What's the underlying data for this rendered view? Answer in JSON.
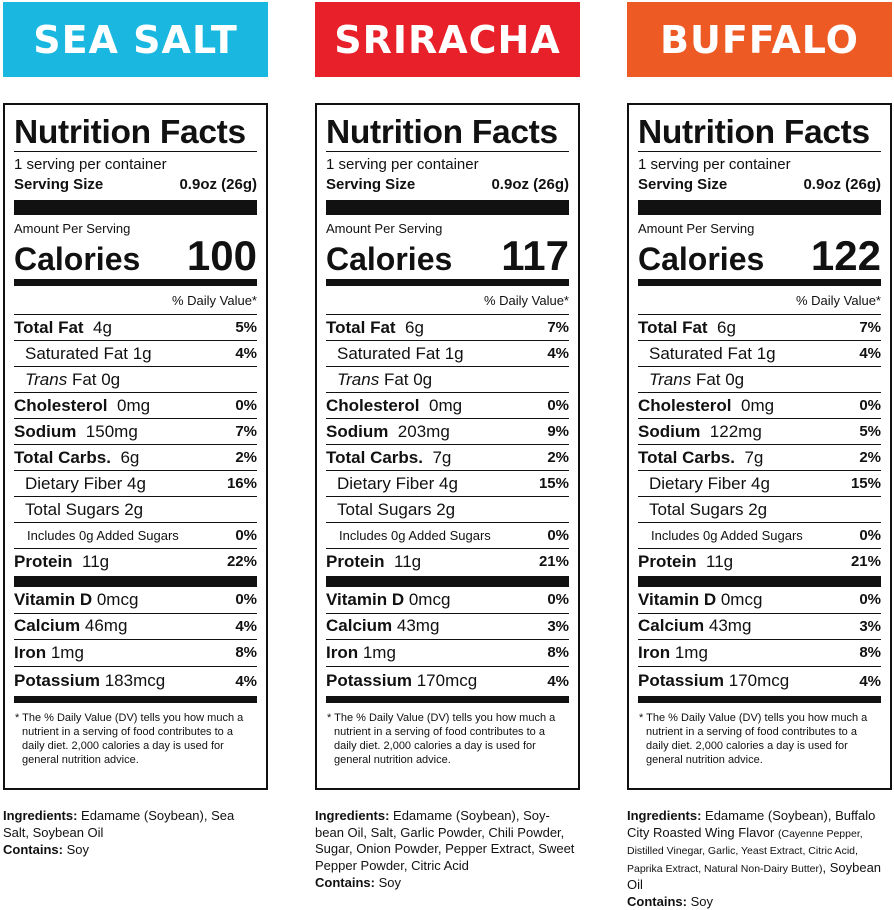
{
  "flavors": [
    {
      "name": "SEA SALT",
      "color": "#1ab8e0",
      "label": {
        "title": "Nutrition Facts",
        "servings": "1 serving per container",
        "serving_size_label": "Serving Size",
        "serving_size": "0.9oz (26g)",
        "amount_per_serving": "Amount Per Serving",
        "calories_label": "Calories",
        "calories": "100",
        "dv_header": "% Daily Value*",
        "rows": [
          {
            "name": "Total Fat",
            "amount": "4g",
            "dv": "5%"
          },
          {
            "name": "Saturated Fat 1g",
            "amount": "",
            "dv": "4%"
          },
          {
            "name": "Trans",
            "amount": "Fat  0g",
            "dv": ""
          },
          {
            "name": "Cholesterol",
            "amount": "0mg",
            "dv": "0%"
          },
          {
            "name": "Sodium",
            "amount": "150mg",
            "dv": "7%"
          },
          {
            "name": "Total Carbs.",
            "amount": "6g",
            "dv": "2%"
          },
          {
            "name": "Dietary Fiber 4g",
            "amount": "",
            "dv": "16%"
          },
          {
            "name": "Total Sugars 2g",
            "amount": "",
            "dv": ""
          },
          {
            "name": "Includes 0g Added Sugars",
            "amount": "",
            "dv": "0%"
          },
          {
            "name": "Protein",
            "amount": "11g",
            "dv": "22%"
          }
        ],
        "minerals": [
          {
            "name": "Vitamin D",
            "amount": "0mcg",
            "dv": "0%"
          },
          {
            "name": "Calcium",
            "amount": "46mg",
            "dv": "4%"
          },
          {
            "name": "Iron",
            "amount": "1mg",
            "dv": "8%"
          },
          {
            "name": "Potassium",
            "amount": "183mcg",
            "dv": "4%"
          }
        ],
        "footnote": "* The % Daily Value (DV) tells you how much a nutrient in a serving of food contributes to a daily diet. 2,000 calories a day is used for general nutrition advice."
      },
      "ingredients_label": "Ingredients:",
      "ingredients": "Edamame (Soybean), Sea Salt, Soybean Oil",
      "ingredients_small": "",
      "ingredients_tail": "",
      "contains_label": "Contains:",
      "contains": "Soy"
    },
    {
      "name": "SRIRACHA",
      "color": "#e82029",
      "label": {
        "title": "Nutrition Facts",
        "servings": "1 serving per container",
        "serving_size_label": "Serving Size",
        "serving_size": "0.9oz (26g)",
        "amount_per_serving": "Amount Per Serving",
        "calories_label": "Calories",
        "calories": "117",
        "dv_header": "% Daily Value*",
        "rows": [
          {
            "name": "Total Fat",
            "amount": "6g",
            "dv": "7%"
          },
          {
            "name": "Saturated Fat 1g",
            "amount": "",
            "dv": "4%"
          },
          {
            "name": "Trans",
            "amount": "Fat  0g",
            "dv": ""
          },
          {
            "name": "Cholesterol",
            "amount": "0mg",
            "dv": "0%"
          },
          {
            "name": "Sodium",
            "amount": "203mg",
            "dv": "9%"
          },
          {
            "name": "Total Carbs.",
            "amount": "7g",
            "dv": "2%"
          },
          {
            "name": "Dietary Fiber 4g",
            "amount": "",
            "dv": "15%"
          },
          {
            "name": "Total Sugars 2g",
            "amount": "",
            "dv": ""
          },
          {
            "name": "Includes 0g Added Sugars",
            "amount": "",
            "dv": "0%"
          },
          {
            "name": "Protein",
            "amount": "11g",
            "dv": "21%"
          }
        ],
        "minerals": [
          {
            "name": "Vitamin D",
            "amount": "0mcg",
            "dv": "0%"
          },
          {
            "name": "Calcium",
            "amount": "43mg",
            "dv": "3%"
          },
          {
            "name": "Iron",
            "amount": "1mg",
            "dv": "8%"
          },
          {
            "name": "Potassium",
            "amount": "170mcg",
            "dv": "4%"
          }
        ],
        "footnote": "* The % Daily Value (DV) tells you how much a nutrient in a serving of food contributes to a daily diet. 2,000 calories a day is used for general nutrition advice."
      },
      "ingredients_label": "Ingredients:",
      "ingredients": "Edamame (Soybean), Soy-bean Oil, Salt, Garlic Powder, Chili Powder, Sugar, Onion Powder, Pepper Extract, Sweet Pepper Powder, Citric Acid",
      "ingredients_small": "",
      "ingredients_tail": "",
      "contains_label": "Contains:",
      "contains": "Soy"
    },
    {
      "name": "BUFFALO",
      "color": "#ee5a24",
      "label": {
        "title": "Nutrition Facts",
        "servings": "1 serving per container",
        "serving_size_label": "Serving Size",
        "serving_size": "0.9oz (26g)",
        "amount_per_serving": "Amount Per Serving",
        "calories_label": "Calories",
        "calories": "122",
        "dv_header": "% Daily Value*",
        "rows": [
          {
            "name": "Total Fat",
            "amount": "6g",
            "dv": "7%"
          },
          {
            "name": "Saturated Fat 1g",
            "amount": "",
            "dv": "4%"
          },
          {
            "name": "Trans",
            "amount": "Fat  0g",
            "dv": ""
          },
          {
            "name": "Cholesterol",
            "amount": "0mg",
            "dv": "0%"
          },
          {
            "name": "Sodium",
            "amount": "122mg",
            "dv": "5%"
          },
          {
            "name": "Total Carbs.",
            "amount": "7g",
            "dv": "2%"
          },
          {
            "name": "Dietary Fiber 4g",
            "amount": "",
            "dv": "15%"
          },
          {
            "name": "Total Sugars 2g",
            "amount": "",
            "dv": ""
          },
          {
            "name": "Includes 0g Added Sugars",
            "amount": "",
            "dv": "0%"
          },
          {
            "name": "Protein",
            "amount": "11g",
            "dv": "21%"
          }
        ],
        "minerals": [
          {
            "name": "Vitamin D",
            "amount": "0mcg",
            "dv": "0%"
          },
          {
            "name": "Calcium",
            "amount": "43mg",
            "dv": "3%"
          },
          {
            "name": "Iron",
            "amount": "1mg",
            "dv": "8%"
          },
          {
            "name": "Potassium",
            "amount": "170mcg",
            "dv": "4%"
          }
        ],
        "footnote": "* The % Daily Value (DV) tells you how much a nutrient in a serving of food contributes to a daily diet. 2,000 calories a day is used for general nutrition advice."
      },
      "ingredients_label": "Ingredients:",
      "ingredients": "Edamame (Soybean), Buffalo City Roasted Wing Flavor",
      "ingredients_small": "(Cayenne Pepper, Distilled Vinegar, Garlic, Yeast Extract, Citric Acid, Paprika Extract, Natural Non-Dairy Butter)",
      "ingredients_tail": ", Soybean Oil",
      "contains_label": "Contains:",
      "contains": "Soy"
    }
  ]
}
